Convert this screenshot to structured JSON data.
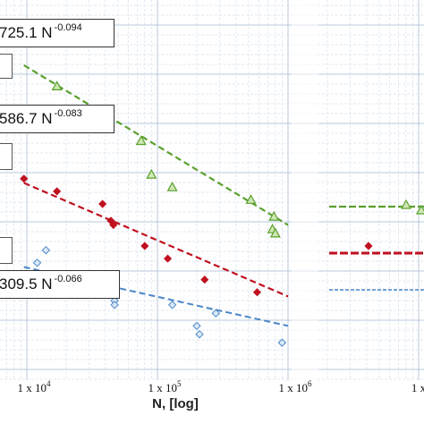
{
  "chart_data": {
    "type": "scatter",
    "xlabel": "N,  [log]",
    "x_scale": "log",
    "x_ticks": [
      {
        "value": 10000,
        "label": "1 x 10",
        "exp": "4"
      },
      {
        "value": 100000,
        "label": "1 x 10",
        "exp": "5"
      },
      {
        "value": 1000000,
        "label": "1 x 10",
        "exp": "6"
      },
      {
        "value": 10000000,
        "label": "1 x",
        "exp": ""
      }
    ],
    "grid": true,
    "colors": {
      "green": "#5aa02c",
      "red": "#c0111f",
      "blue": "#4a86c8",
      "box_border": "#333333"
    },
    "equations": [
      {
        "coef": "725.1",
        "text": "725.1 N",
        "exp": "-0.094"
      },
      {
        "coef": "586.7",
        "text": "586.7 N",
        "exp": "-0.083"
      },
      {
        "coef": "309.5",
        "text": "309.5 N",
        "exp": "-0.066"
      }
    ],
    "series": [
      {
        "marker": "triangle",
        "color": "green",
        "points": [
          [
            17000,
            0.88
          ],
          [
            28000,
            0.8
          ],
          [
            75000,
            0.75
          ],
          [
            90000,
            0.67
          ],
          [
            130000,
            0.64
          ],
          [
            520000,
            0.61
          ],
          [
            780000,
            0.57
          ],
          [
            760000,
            0.54
          ],
          [
            800000,
            0.53
          ]
        ],
        "trend_start": [
          9500,
          0.93
        ],
        "trend_end": [
          1000000,
          0.55
        ],
        "runout": [
          [
            9000000,
            0.42
          ],
          [
            11000000,
            0.4
          ]
        ]
      },
      {
        "marker": "diamond",
        "color": "red",
        "points": [
          [
            9500,
            0.66
          ],
          [
            17000,
            0.63
          ],
          [
            38000,
            0.6
          ],
          [
            44000,
            0.56
          ],
          [
            46000,
            0.55
          ],
          [
            80000,
            0.5
          ],
          [
            120000,
            0.47
          ],
          [
            230000,
            0.42
          ],
          [
            580000,
            0.39
          ]
        ],
        "trend_start": [
          9500,
          0.65
        ],
        "trend_end": [
          1000000,
          0.38
        ],
        "runout": [
          [
            5000000,
            0.4
          ]
        ]
      },
      {
        "marker": "diamond-open",
        "color": "blue",
        "points": [
          [
            12000,
            0.46
          ],
          [
            14000,
            0.49
          ],
          [
            24000,
            0.43
          ],
          [
            47000,
            0.37
          ],
          [
            47000,
            0.36
          ],
          [
            130000,
            0.36
          ],
          [
            280000,
            0.34
          ],
          [
            210000,
            0.29
          ],
          [
            200000,
            0.31
          ],
          [
            900000,
            0.27
          ]
        ],
        "trend_start": [
          9500,
          0.45
        ],
        "trend_end": [
          1000000,
          0.31
        ]
      }
    ]
  }
}
